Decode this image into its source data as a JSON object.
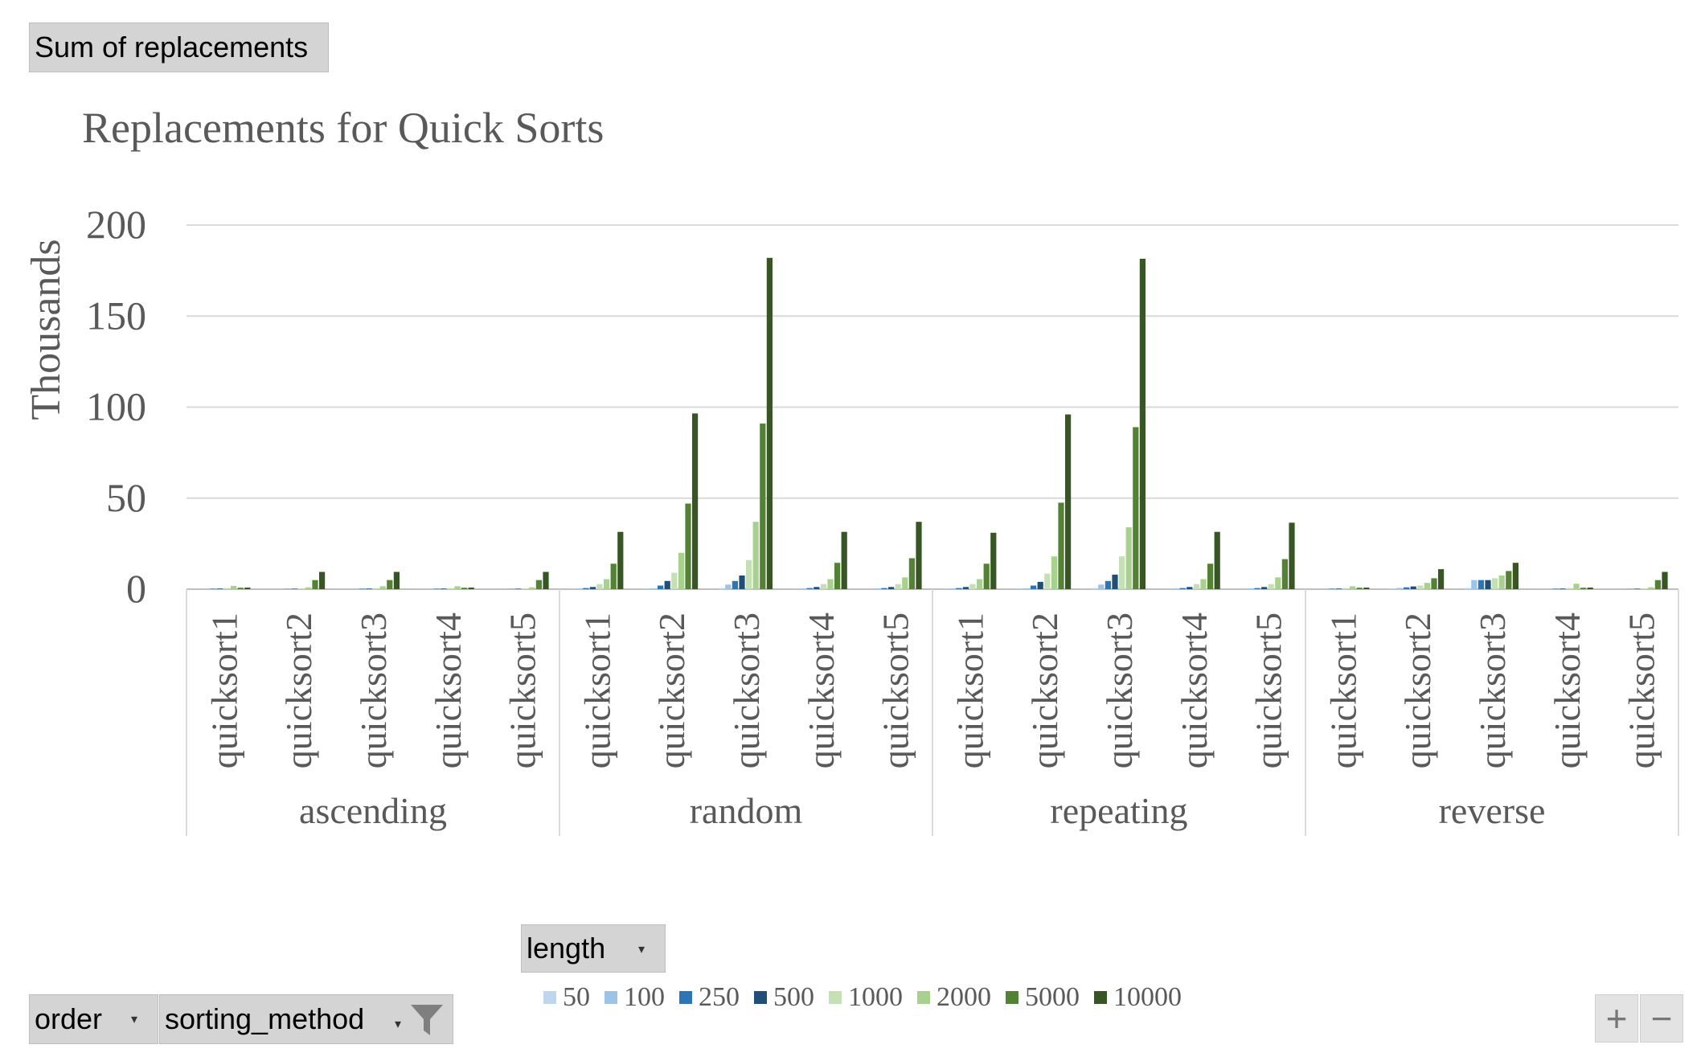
{
  "pivot": {
    "values_field": "Sum of replacements",
    "legend_field": "length",
    "axis_fields": [
      "order",
      "sorting_method"
    ],
    "zoom_in": "+",
    "zoom_out": "−"
  },
  "chart_data": {
    "type": "bar",
    "title": "Replacements for Quick Sorts",
    "ylabel": "Thousands",
    "xlabel": "",
    "ylim": [
      0,
      200
    ],
    "yticks": [
      0,
      50,
      100,
      150,
      200
    ],
    "grid": true,
    "legend_position": "bottom",
    "groups": [
      "ascending",
      "random",
      "repeating",
      "reverse"
    ],
    "methods": [
      "quicksort1",
      "quicksort2",
      "quicksort3",
      "quicksort4",
      "quicksort5"
    ],
    "categories": [
      "ascending|quicksort1",
      "ascending|quicksort2",
      "ascending|quicksort3",
      "ascending|quicksort4",
      "ascending|quicksort5",
      "random|quicksort1",
      "random|quicksort2",
      "random|quicksort3",
      "random|quicksort4",
      "random|quicksort5",
      "repeating|quicksort1",
      "repeating|quicksort2",
      "repeating|quicksort3",
      "repeating|quicksort4",
      "repeating|quicksort5",
      "reverse|quicksort1",
      "reverse|quicksort2",
      "reverse|quicksort3",
      "reverse|quicksort4",
      "reverse|quicksort5"
    ],
    "series": [
      {
        "name": "50",
        "color": "#bdd7ee",
        "values": [
          0.05,
          0.05,
          0.05,
          0.05,
          0.05,
          0.15,
          0.2,
          0.6,
          0.15,
          0.15,
          0.15,
          0.2,
          0.6,
          0.15,
          0.15,
          0.05,
          0.3,
          0.6,
          0.05,
          0.05
        ]
      },
      {
        "name": "100",
        "color": "#9dc3e6",
        "values": [
          0.1,
          0.1,
          0.1,
          0.1,
          0.1,
          0.3,
          0.5,
          2.5,
          0.3,
          0.3,
          0.3,
          0.5,
          2.5,
          0.3,
          0.3,
          0.1,
          0.7,
          5.0,
          0.1,
          0.1
        ]
      },
      {
        "name": "250",
        "color": "#2e75b6",
        "values": [
          0.2,
          0.1,
          0.2,
          0.2,
          0.1,
          0.6,
          2.0,
          4.5,
          0.6,
          0.6,
          0.6,
          2.0,
          4.5,
          0.6,
          0.6,
          0.2,
          1.0,
          5.0,
          0.2,
          0.1
        ]
      },
      {
        "name": "500",
        "color": "#1f4e79",
        "values": [
          0.3,
          0.2,
          0.3,
          0.3,
          0.2,
          1.2,
          4.5,
          7.5,
          1.2,
          1.2,
          1.2,
          4.0,
          8.0,
          1.2,
          1.2,
          0.3,
          1.5,
          5.0,
          0.3,
          0.2
        ]
      },
      {
        "name": "1000",
        "color": "#c5e0b4",
        "values": [
          0.6,
          0.4,
          0.6,
          0.6,
          0.4,
          2.8,
          9.0,
          16.0,
          2.8,
          2.8,
          2.8,
          8.5,
          18.0,
          2.8,
          2.8,
          0.6,
          2.0,
          6.0,
          0.6,
          0.4
        ]
      },
      {
        "name": "2000",
        "color": "#a9d18e",
        "values": [
          1.8,
          1.0,
          1.6,
          1.6,
          1.0,
          5.5,
          20.0,
          37.0,
          5.5,
          6.5,
          5.5,
          18.0,
          34.0,
          5.5,
          6.5,
          1.6,
          3.5,
          7.5,
          3.0,
          1.0
        ]
      },
      {
        "name": "5000",
        "color": "#548235",
        "values": [
          0.8,
          5.0,
          5.0,
          0.8,
          5.0,
          14.0,
          47.0,
          91.0,
          14.5,
          17.0,
          14.0,
          47.5,
          89.0,
          14.0,
          16.5,
          0.8,
          6.0,
          10.0,
          0.8,
          5.0
        ]
      },
      {
        "name": "10000",
        "color": "#375623",
        "values": [
          0.9,
          9.5,
          9.5,
          0.9,
          9.5,
          31.5,
          96.5,
          182.0,
          31.5,
          37.0,
          31.0,
          96.0,
          181.5,
          31.5,
          36.5,
          0.9,
          11.0,
          14.5,
          0.9,
          9.5
        ]
      }
    ]
  }
}
